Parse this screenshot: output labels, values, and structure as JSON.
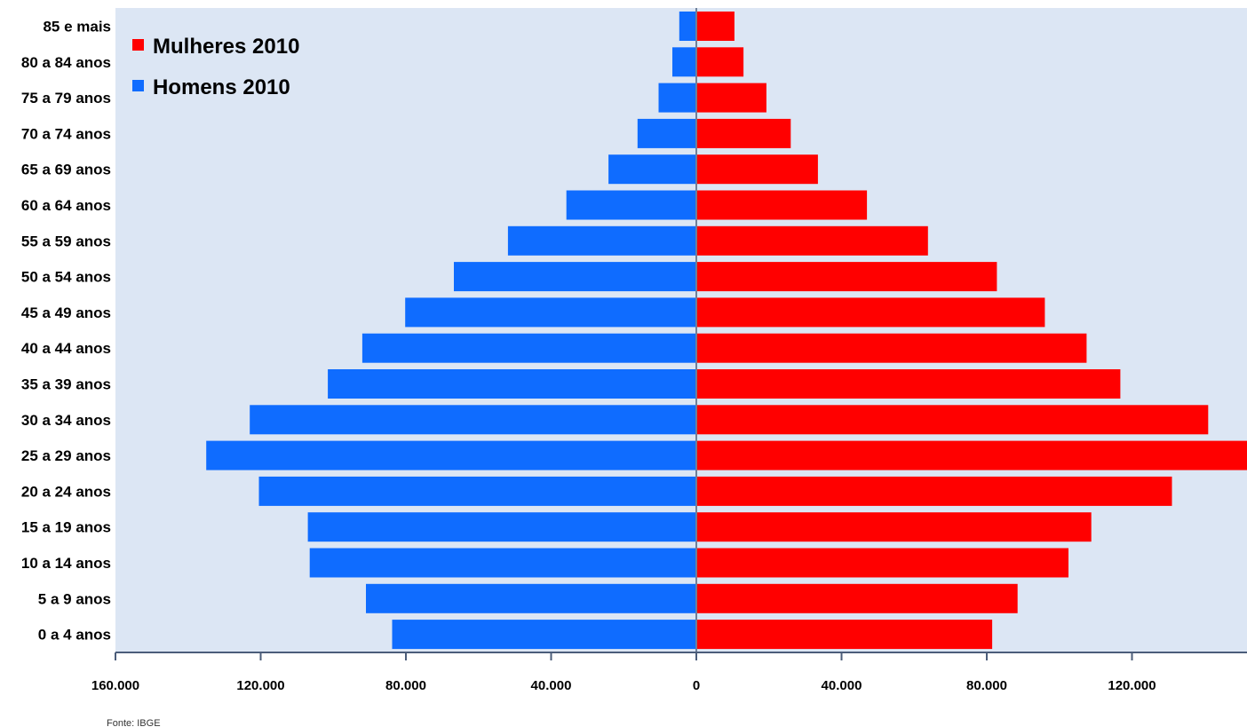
{
  "chart_data": {
    "type": "bar",
    "orientation": "horizontal",
    "layout": "population-pyramid",
    "categories": [
      "85 e mais",
      "80 a 84 anos",
      "75 a 79 anos",
      "70 a 74 anos",
      "65 a 69 anos",
      "60 a 64 anos",
      "55 a 59 anos",
      "50 a 54 anos",
      "45 a 49 anos",
      "40 a 44 anos",
      "35 a 39 anos",
      "30 a 34 anos",
      "25 a 29 anos",
      "20 a 24 anos",
      "15 a 19 anos",
      "10 a 14 anos",
      "5 a 9 anos",
      "0 a 4 anos"
    ],
    "series": [
      {
        "name": "Mulheres 2010",
        "color": "#ff0000",
        "side": "right",
        "values": [
          10500,
          13000,
          19300,
          26000,
          33500,
          47000,
          63800,
          82800,
          96000,
          107500,
          116800,
          141000,
          152000,
          131000,
          108800,
          102500,
          88500,
          81500
        ]
      },
      {
        "name": "Homens 2010",
        "color": "#0f6cff",
        "side": "left",
        "values": [
          4700,
          6600,
          10400,
          16200,
          24200,
          35800,
          51900,
          66800,
          80200,
          92000,
          101500,
          123000,
          135000,
          120500,
          107000,
          106500,
          91000,
          83800
        ]
      }
    ],
    "x_ticks": [
      "160.000",
      "120.000",
      "80.000",
      "40.000",
      "0",
      "40.000",
      "80.000",
      "120.000"
    ],
    "xlim": [
      -160000,
      152000
    ],
    "grid": false,
    "legend_position": "top-left",
    "plot_background": "#dce6f4",
    "source": "Fonte: IBGE"
  }
}
